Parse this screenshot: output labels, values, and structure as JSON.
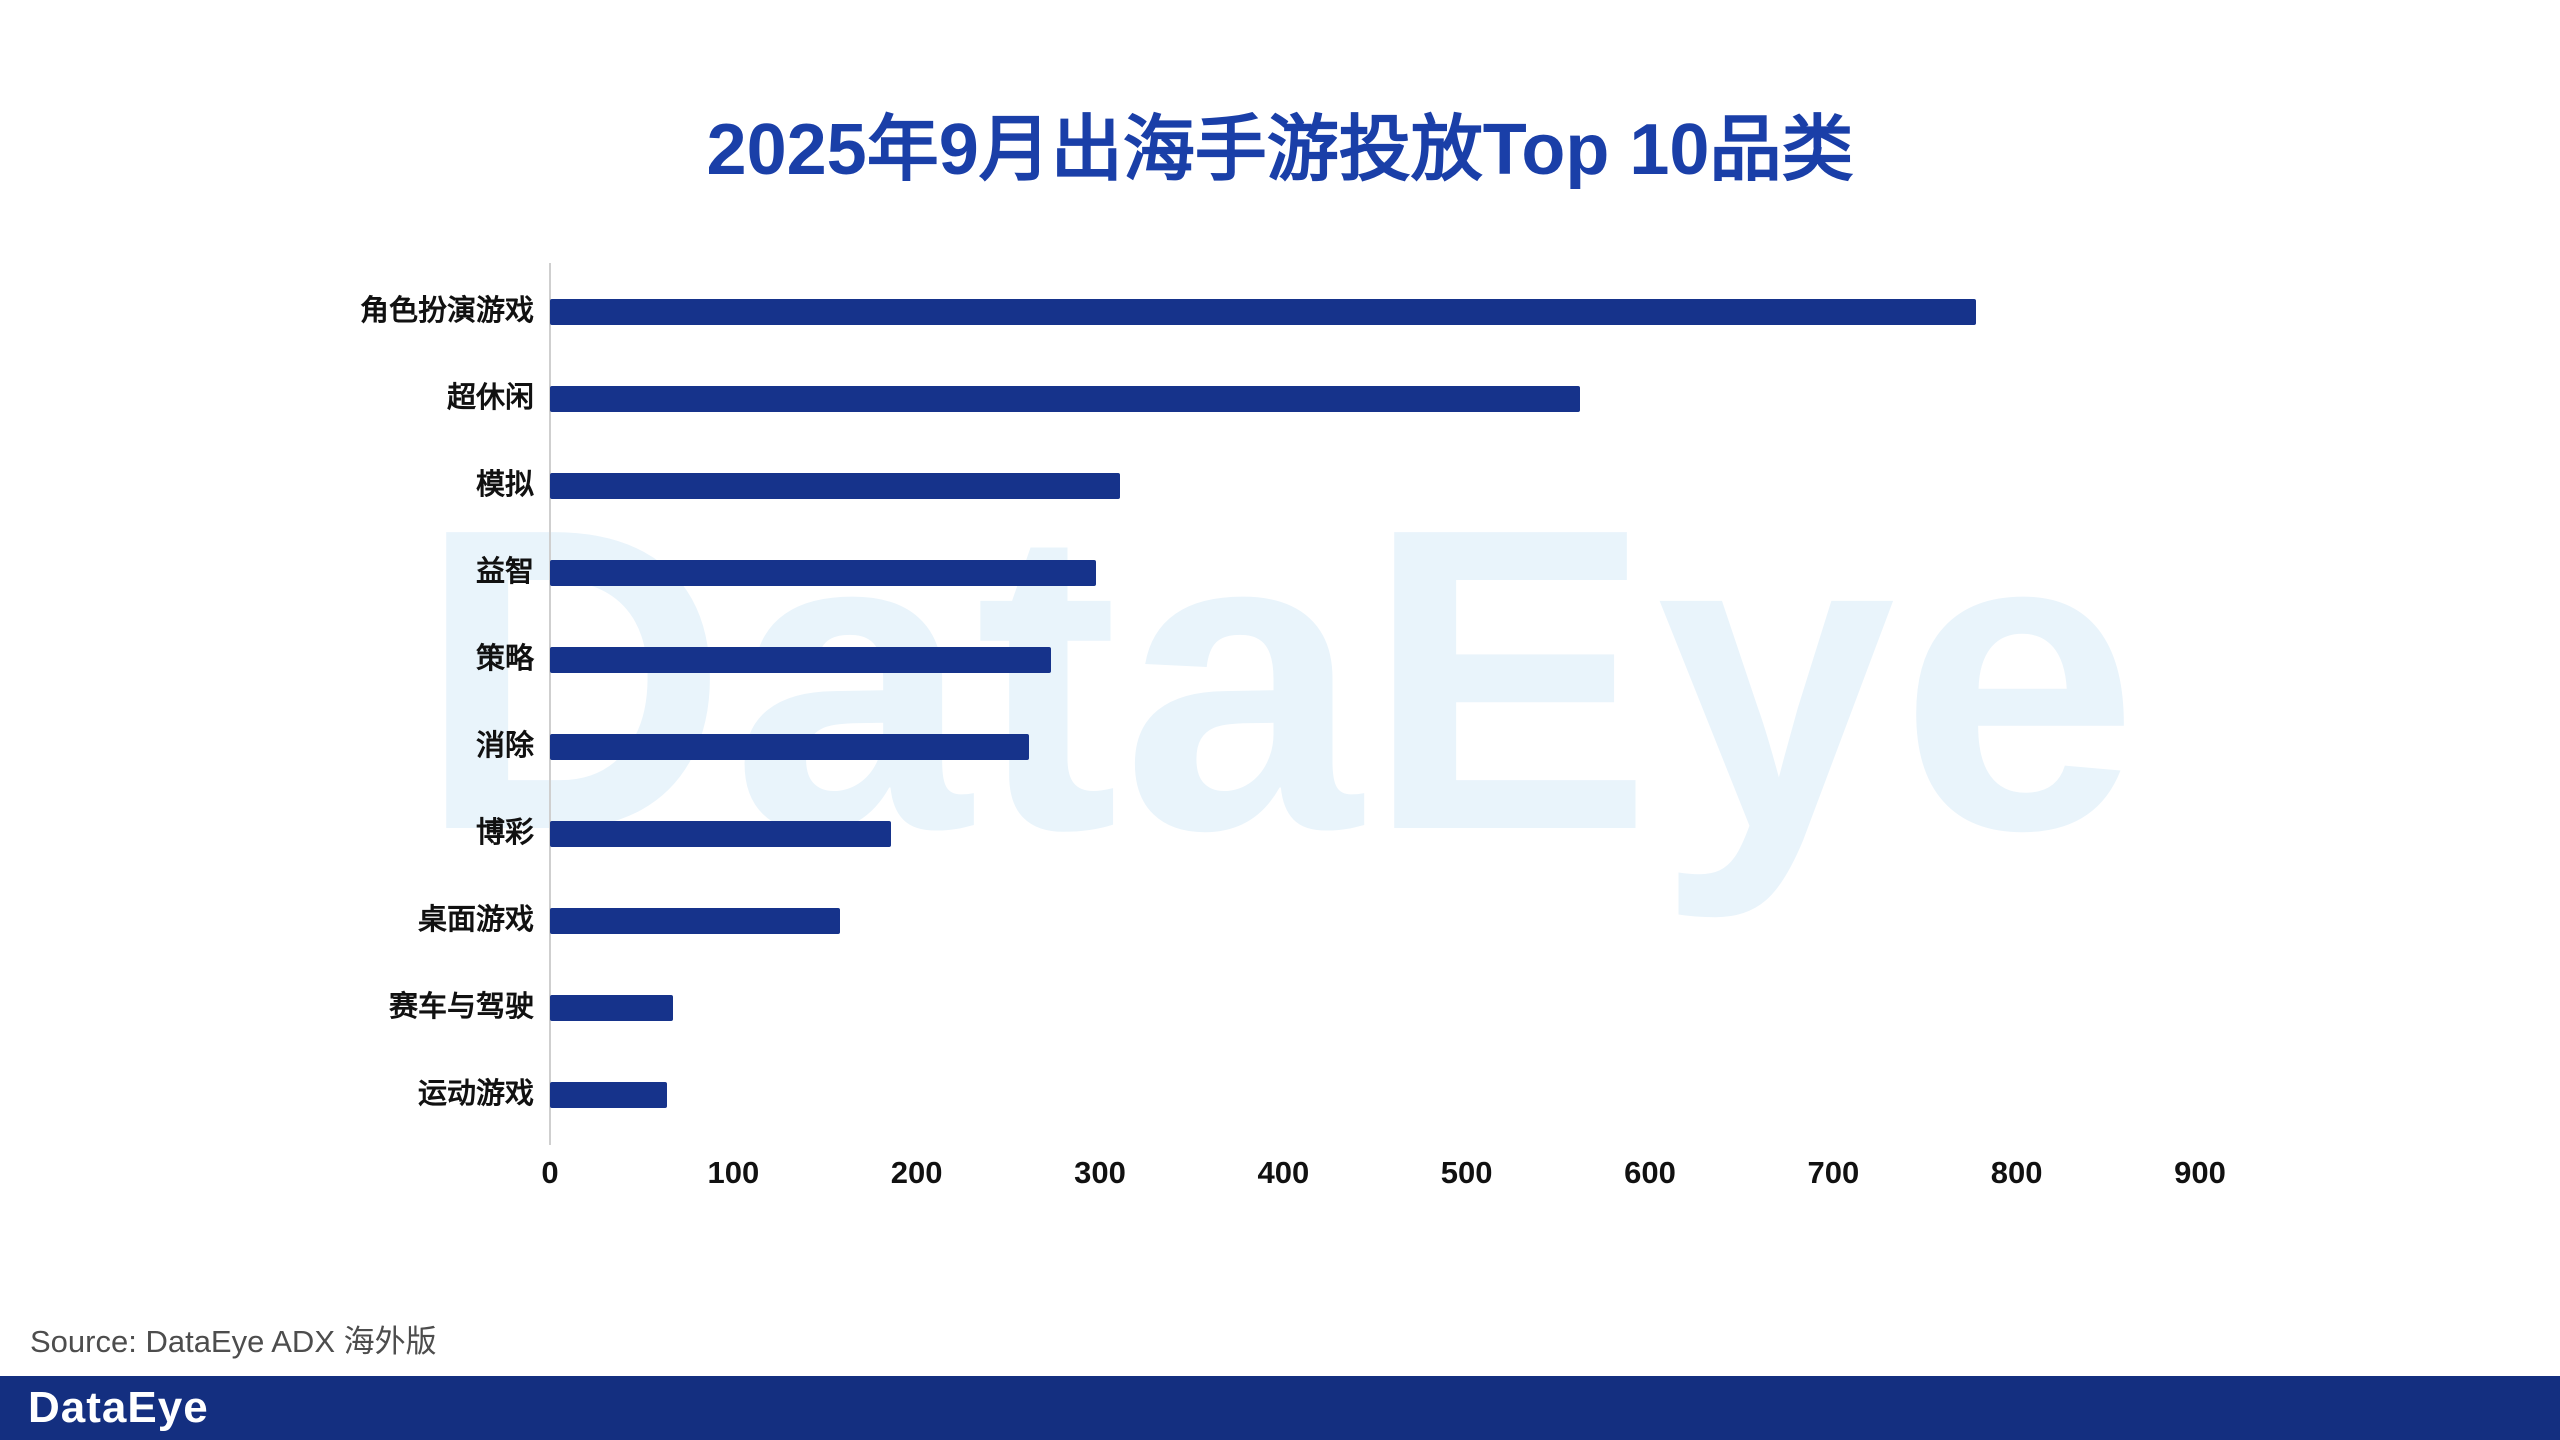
{
  "title": "2025年9月出海手游投放Top 10品类",
  "watermark": {
    "text": "DataEye"
  },
  "source": "Source: DataEye ADX 海外版",
  "footer": {
    "logo": "DataEye"
  },
  "colors": {
    "bar": "#16338b",
    "title": "#1a3fa8",
    "footer_bg": "#142f80",
    "watermark": "#e9f4fb"
  },
  "chart_data": {
    "type": "bar",
    "orientation": "horizontal",
    "title": "2025年9月出海手游投放Top 10品类",
    "categories": [
      "角色扮演游戏",
      "超休闲",
      "模拟",
      "益智",
      "策略",
      "消除",
      "博彩",
      "桌面游戏",
      "赛车与驾驶",
      "运动游戏"
    ],
    "values": [
      778,
      562,
      311,
      298,
      273,
      261,
      186,
      158,
      67,
      64
    ],
    "xlabel": "",
    "ylabel": "",
    "xlim": [
      0,
      900
    ],
    "xticks": [
      0,
      100,
      200,
      300,
      400,
      500,
      600,
      700,
      800,
      900
    ],
    "grid": false,
    "legend": false
  }
}
